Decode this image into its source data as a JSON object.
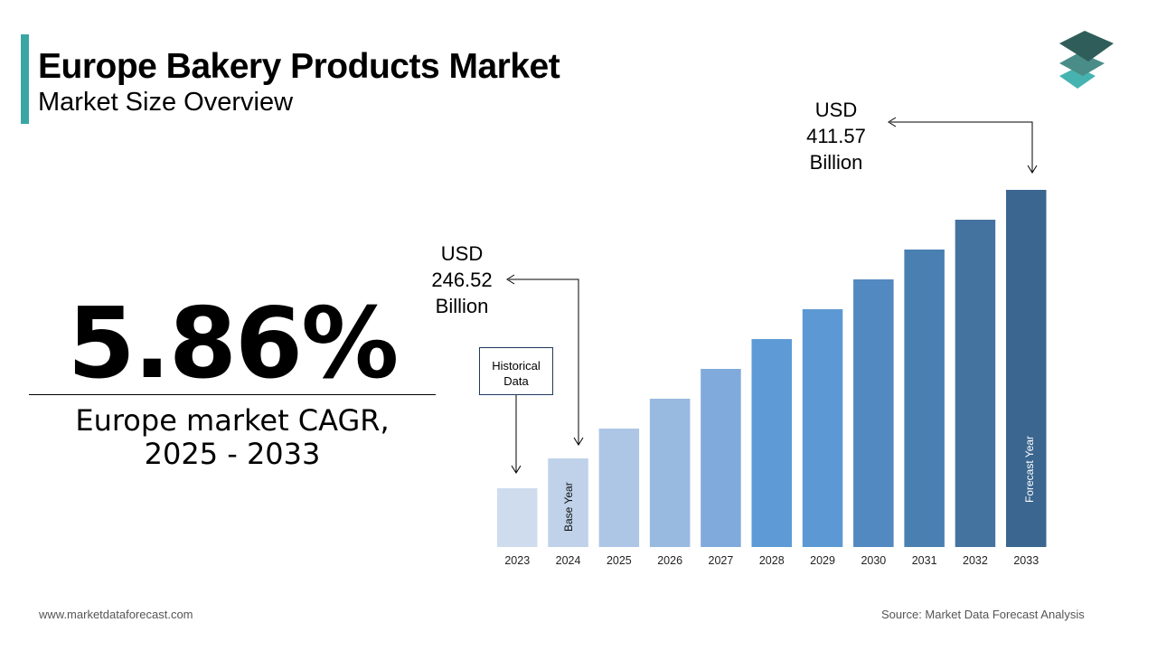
{
  "header": {
    "title": "Europe Bakery Products Market",
    "subtitle": "Market Size Overview"
  },
  "cagr": {
    "value": "5.86%",
    "label_line1": "Europe market CAGR,",
    "label_line2": "2025 - 2033"
  },
  "footer": {
    "website": "www.marketdataforecast.com",
    "source": "Source: Market Data Forecast Analysis"
  },
  "annotations": {
    "start": {
      "line1": "USD",
      "line2": "246.52",
      "line3": "Billion"
    },
    "end": {
      "line1": "USD",
      "line2": "411.57",
      "line3": "Billion"
    },
    "historical": {
      "line1": "Historical",
      "line2": "Data"
    },
    "base_year": "Base Year",
    "forecast_year": "Forecast Year"
  },
  "chart_data": {
    "type": "bar",
    "categories": [
      "2023",
      "2024",
      "2025",
      "2026",
      "2027",
      "2028",
      "2029",
      "2030",
      "2031",
      "2032",
      "2033"
    ],
    "values": [
      null,
      246.52,
      null,
      null,
      null,
      null,
      null,
      null,
      null,
      null,
      411.57
    ],
    "unit": "USD Billion",
    "colors": [
      "#cfdcee",
      "#bfd2ea",
      "#aec6e6",
      "#98b9e0",
      "#81aadc",
      "#5e9bd6",
      "#5c98d3",
      "#5289c0",
      "#4a7fb2",
      "#4573a0",
      "#3a668f"
    ],
    "grid": false,
    "legend": "none"
  },
  "logo_colors": [
    "#2f5e5a",
    "#4a8c88",
    "#46b3b0"
  ]
}
